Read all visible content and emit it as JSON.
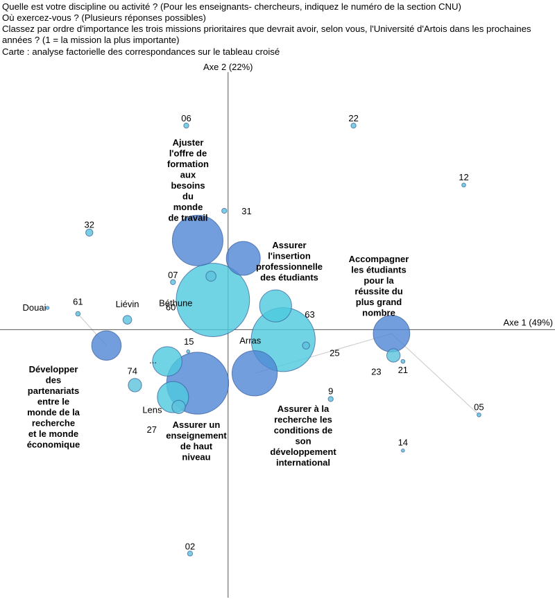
{
  "header": {
    "lines": [
      "Quelle est votre discipline ou activité ? (Pour les enseignants- chercheurs, indiquez le numéro de la section CNU)",
      "Où exercez-vous ? (Plusieurs réponses possibles)",
      "Classez par ordre d'importance les trois missions prioritaires que devrait avoir, selon vous, l'Université d'Artois dans les prochaines années ? (1 = la mission la plus importante)"
    ],
    "caption": "Carte : analyse factorielle des correspondances sur le tableau croisé"
  },
  "chart_data": {
    "type": "scatter",
    "subtype": "correspondence-analysis-map",
    "title": "Carte : analyse factorielle des correspondances sur le tableau croisé",
    "xlabel": "Axe 1 (49%)",
    "ylabel": "Axe 2 (22%)",
    "xlim": [
      -1.2,
      1.72
    ],
    "ylim": [
      -1.43,
      1.37
    ],
    "grid": false,
    "colors": {
      "axis": "#555555",
      "light_bubble": "#4dc9dd",
      "dark_bubble": "#4f86d6",
      "bubble_edge": "#3a5f9a",
      "dot": "#5bc2dc"
    },
    "series": [
      {
        "name": "discipline",
        "points": [
          {
            "label": "06",
            "x": -0.22,
            "y": 1.03,
            "size": 1
          },
          {
            "label": "22",
            "x": 0.66,
            "y": 1.03,
            "size": 1
          },
          {
            "label": "12",
            "x": 1.24,
            "y": 0.73,
            "size": 0.6
          },
          {
            "label": "31",
            "x": -0.02,
            "y": 0.6,
            "size": 1
          },
          {
            "label": "32",
            "x": -0.73,
            "y": 0.49,
            "size": 2
          },
          {
            "label": "07",
            "x": -0.29,
            "y": 0.24,
            "size": 1
          },
          {
            "label": "60",
            "x": -0.08,
            "y": 0.15,
            "size": 210
          },
          {
            "label": "63",
            "x": 0.25,
            "y": 0.12,
            "size": 40
          },
          {
            "label": "Douai",
            "x": -0.95,
            "y": 0.11,
            "size": 0.4
          },
          {
            "label": "61",
            "x": -0.79,
            "y": 0.08,
            "size": 0.8
          },
          {
            "label": "Liévin",
            "x": -0.53,
            "y": 0.05,
            "size": 3
          },
          {
            "label": "Béthune",
            "x": -0.09,
            "y": 0.27,
            "size": 4
          },
          {
            "label": "Arras",
            "x": 0.29,
            "y": -0.05,
            "size": 160
          },
          {
            "label": "25",
            "x": 0.41,
            "y": -0.08,
            "size": 2
          },
          {
            "label": "15",
            "x": -0.21,
            "y": -0.11,
            "size": 0.4
          },
          {
            "label": "23",
            "x": 0.87,
            "y": -0.13,
            "size": 7
          },
          {
            "label": "21",
            "x": 0.92,
            "y": -0.16,
            "size": 0.6
          },
          {
            "label": "...",
            "x": -0.32,
            "y": -0.16,
            "size": 34
          },
          {
            "label": "74",
            "x": -0.49,
            "y": -0.28,
            "size": 7
          },
          {
            "label": "Lens",
            "x": -0.29,
            "y": -0.34,
            "size": 38
          },
          {
            "label": "27",
            "x": -0.26,
            "y": -0.39,
            "size": 7
          },
          {
            "label": "9",
            "x": 0.54,
            "y": -0.35,
            "size": 1
          },
          {
            "label": "05",
            "x": 1.32,
            "y": -0.43,
            "size": 0.6
          },
          {
            "label": "14",
            "x": 0.92,
            "y": -0.61,
            "size": 0.4
          },
          {
            "label": "02",
            "x": -0.2,
            "y": -1.13,
            "size": 1
          }
        ]
      },
      {
        "name": "mission",
        "points": [
          {
            "label": "Ajuster l'offre de formation aux besoins du monde de travail",
            "x": -0.16,
            "y": 0.45,
            "size": 100
          },
          {
            "label": "Assurer l'insertion professionnelle des étudiants",
            "x": 0.08,
            "y": 0.36,
            "size": 45
          },
          {
            "label": "Accompagner les étudiants pour la réussite du plus grand nombre",
            "x": 0.86,
            "y": -0.02,
            "size": 52
          },
          {
            "label": "Développer des partenariats entre le monde de la recherche et le monde économique",
            "x": -0.64,
            "y": -0.08,
            "size": 34
          },
          {
            "label": "Assurer un enseignement de haut niveau",
            "x": -0.16,
            "y": -0.27,
            "size": 150
          },
          {
            "label": "Assurer à la recherche les conditions de son développement international",
            "x": 0.14,
            "y": -0.22,
            "size": 80
          }
        ]
      }
    ],
    "links": [
      {
        "from": "Développer des partenariats entre le monde de la recherche et le monde économique",
        "to": "61"
      },
      {
        "from": "Assurer à la recherche les conditions de son développement international",
        "to": "Accompagner les étudiants pour la réussite du plus grand nombre"
      },
      {
        "from": "Accompagner les étudiants pour la réussite du plus grand nombre",
        "to": "05"
      }
    ]
  }
}
